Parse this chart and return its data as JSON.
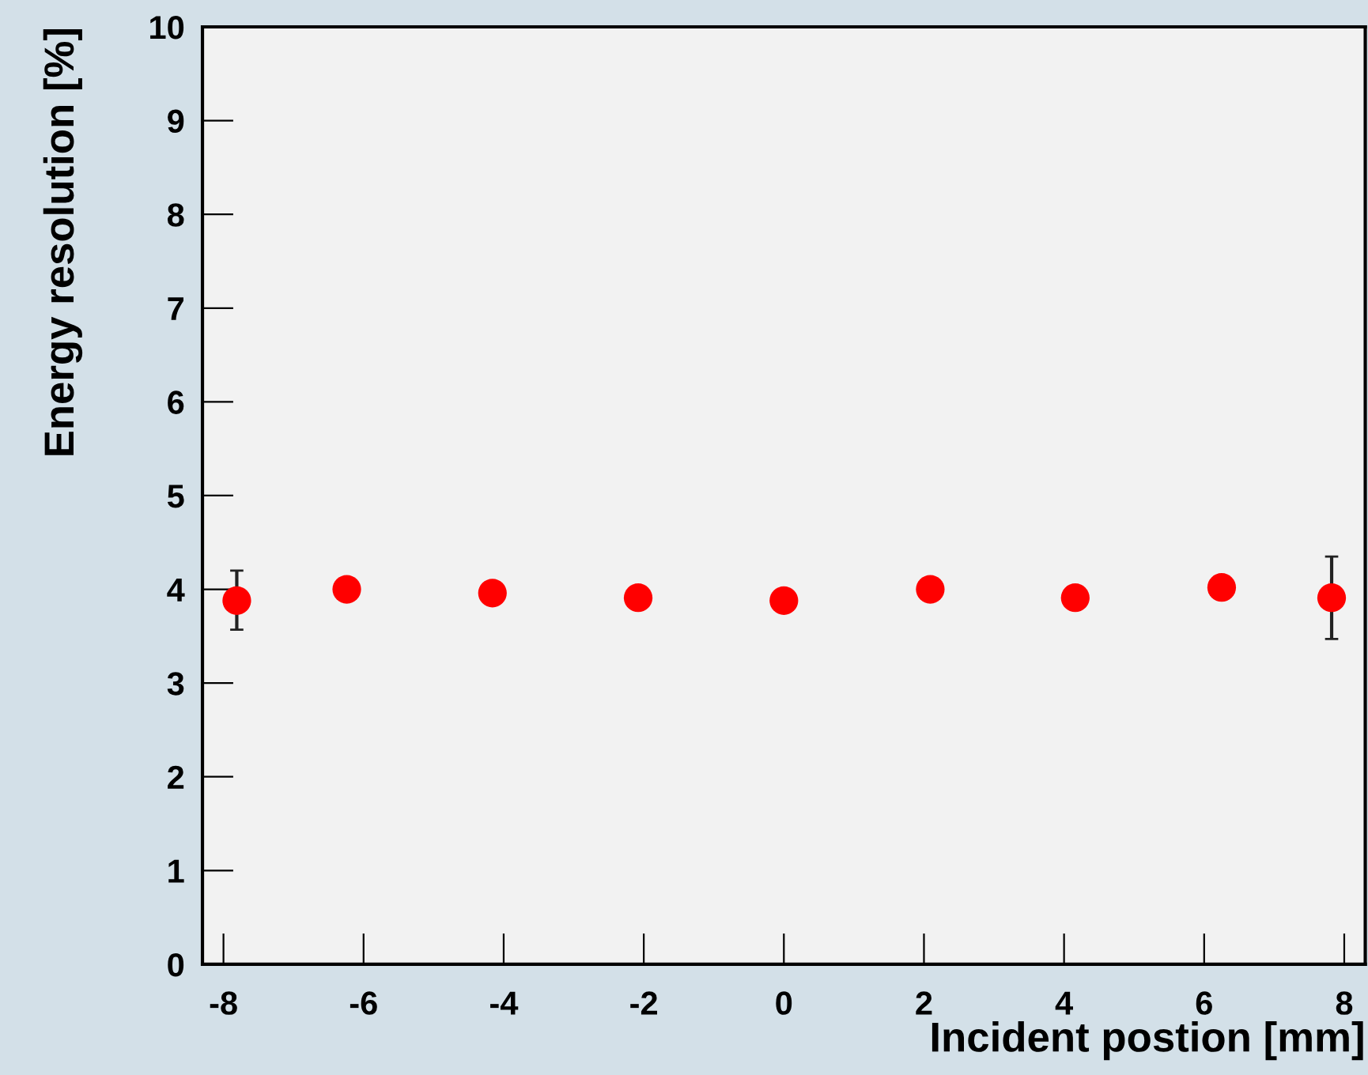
{
  "chart_data": {
    "type": "scatter",
    "xlabel": "Incident postion [mm]",
    "ylabel": "Energy resolution [%]",
    "x": [
      -7.81,
      -6.24,
      -4.16,
      -2.08,
      0,
      2.09,
      4.16,
      6.25,
      7.82
    ],
    "series": [
      {
        "color": "#ff0000",
        "values": [
          3.88,
          4.0,
          3.96,
          3.91,
          3.88,
          4.0,
          3.91,
          4.02,
          3.91
        ],
        "errors": [
          [
            3.57,
            4.2
          ],
          null,
          null,
          null,
          null,
          null,
          null,
          null,
          [
            3.47,
            4.35
          ]
        ]
      }
    ],
    "xlim": [
      -8.3,
      8.3
    ],
    "ylim": [
      0,
      10
    ],
    "xticks": [
      -8,
      -6,
      -4,
      -2,
      0,
      2,
      4,
      6,
      8
    ],
    "yticks": [
      0,
      1,
      2,
      3,
      4,
      5,
      6,
      7,
      8,
      9,
      10
    ],
    "marker": "circle",
    "grid": false,
    "legend": false
  }
}
